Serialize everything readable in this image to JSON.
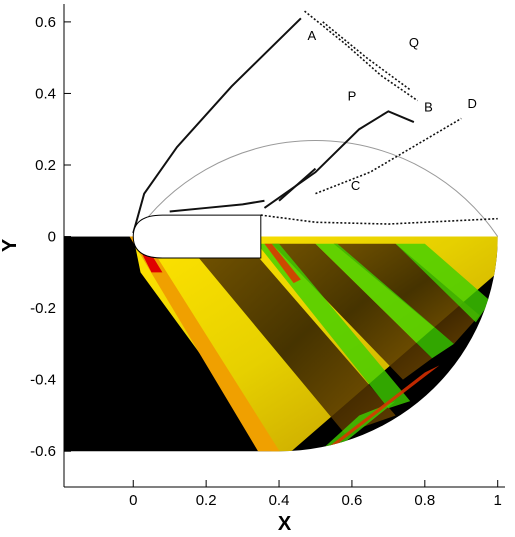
{
  "chart_data": {
    "type": "contour",
    "xlabel": "X",
    "ylabel": "Y",
    "xlim": [
      -0.19,
      1.02
    ],
    "ylim": [
      -0.7,
      0.65
    ],
    "x_ticks": [
      {
        "value": 0,
        "label": "0"
      },
      {
        "value": 0.2,
        "label": "0.2"
      },
      {
        "value": 0.4,
        "label": "0.4"
      },
      {
        "value": 0.6,
        "label": "0.6"
      },
      {
        "value": 0.8,
        "label": "0.8"
      },
      {
        "value": 1,
        "label": "1"
      }
    ],
    "y_ticks": [
      {
        "value": 0.6,
        "label": "0.6"
      },
      {
        "value": 0.4,
        "label": "0.4"
      },
      {
        "value": 0.2,
        "label": "0.2"
      },
      {
        "value": 0,
        "label": "0"
      },
      {
        "value": -0.2,
        "label": "-0.2"
      },
      {
        "value": -0.4,
        "label": "-0.4"
      },
      {
        "value": -0.6,
        "label": "-0.6"
      }
    ],
    "domain_center": [
      0.4,
      0
    ],
    "domain_radius": 0.6,
    "body": {
      "nose_x": 0,
      "base_x": 0.35,
      "radius": 0.06
    },
    "annotations": [
      {
        "text": "A",
        "x": 0.49,
        "y": 0.55
      },
      {
        "text": "Q",
        "x": 0.77,
        "y": 0.53
      },
      {
        "text": "P",
        "x": 0.6,
        "y": 0.38
      },
      {
        "text": "B",
        "x": 0.81,
        "y": 0.35
      },
      {
        "text": "D",
        "x": 0.93,
        "y": 0.36
      },
      {
        "text": "C",
        "x": 0.61,
        "y": 0.13
      }
    ],
    "upper_features": [
      {
        "name": "bow-shock",
        "points": [
          [
            0,
            0.01
          ],
          [
            0.03,
            0.12
          ],
          [
            0.12,
            0.25
          ],
          [
            0.27,
            0.42
          ],
          [
            0.43,
            0.58
          ],
          [
            0.46,
            0.61
          ]
        ],
        "style": "solid"
      },
      {
        "name": "shock-A",
        "points": [
          [
            0.47,
            0.63
          ],
          [
            0.58,
            0.54
          ],
          [
            0.68,
            0.45
          ],
          [
            0.78,
            0.38
          ]
        ],
        "style": "dotted"
      },
      {
        "name": "shock-Q",
        "points": [
          [
            0.52,
            0.6
          ],
          [
            0.64,
            0.5
          ],
          [
            0.76,
            0.41
          ]
        ],
        "style": "dotted"
      },
      {
        "name": "shock-B",
        "points": [
          [
            0.36,
            0.08
          ],
          [
            0.5,
            0.18
          ],
          [
            0.62,
            0.3
          ],
          [
            0.7,
            0.35
          ],
          [
            0.77,
            0.32
          ]
        ],
        "style": "solid"
      },
      {
        "name": "shock-D",
        "points": [
          [
            0.5,
            0.12
          ],
          [
            0.65,
            0.18
          ],
          [
            0.8,
            0.27
          ],
          [
            0.9,
            0.33
          ]
        ],
        "style": "dotted"
      },
      {
        "name": "shock-C",
        "points": [
          [
            0.4,
            0.1
          ],
          [
            0.5,
            0.19
          ]
        ],
        "style": "solid"
      },
      {
        "name": "wake-shear",
        "points": [
          [
            0.35,
            0.06
          ],
          [
            0.5,
            0.04
          ],
          [
            0.7,
            0.035
          ],
          [
            1,
            0.05
          ]
        ],
        "style": "dotted"
      },
      {
        "name": "inner-shock",
        "points": [
          [
            0.1,
            0.07
          ],
          [
            0.2,
            0.08
          ],
          [
            0.3,
            0.09
          ],
          [
            0.36,
            0.1
          ]
        ],
        "style": "solid"
      }
    ]
  }
}
